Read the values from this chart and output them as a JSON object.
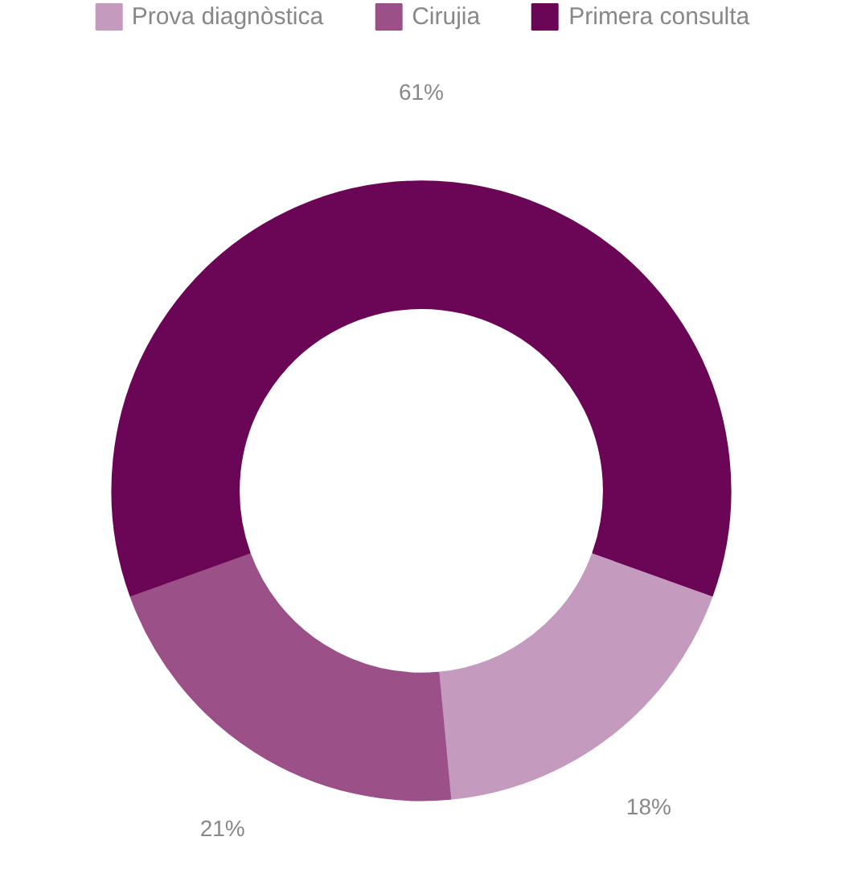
{
  "chart_data": {
    "type": "donut",
    "categories": [
      "Prova diagnòstica",
      "Cirujia",
      "Primera consulta"
    ],
    "values": [
      18,
      21,
      61
    ],
    "colors": [
      "#c49bbf",
      "#9b5088",
      "#6b0555"
    ],
    "value_labels": [
      "18%",
      "21%",
      "61%"
    ],
    "legend": "top"
  }
}
